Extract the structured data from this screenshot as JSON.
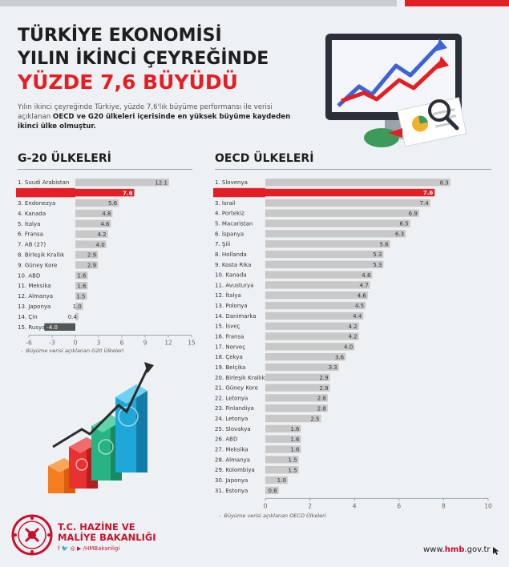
{
  "title": {
    "line1": "TÜRKİYE EKONOMİSİ",
    "line2": "YILIN İKİNCİ ÇEYREĞİNDE",
    "line3": "YÜZDE 7,6 BÜYÜDÜ"
  },
  "description": {
    "part1": "Yılın ikinci çeyreğinde Türkiye, yüzde 7,6'lık büyüme performansı ile verisi açıklanan ",
    "part2_bold": "OECD ve G20 ülkeleri içerisinde en yüksek büyüme kaydeden ikinci ülke olmuştur."
  },
  "colors": {
    "highlight": "#e31e24",
    "bar": "#c8c8c8",
    "accent": "#c8102e"
  },
  "chart_data": [
    {
      "type": "bar",
      "orientation": "horizontal",
      "title": "G-20 ÜLKELERİ",
      "categories": [
        "1. Suudi Arabistan",
        "2. TÜRKİYE",
        "3. Endonezya",
        "4. Kanada",
        "5. İtalya",
        "6. Fransa",
        "7. AB (27)",
        "8. Birleşik Krallık",
        "9. Güney Kore",
        "10. ABD",
        "11. Meksika",
        "12. Almanya",
        "13. Japonya",
        "14. Çin",
        "15. Rusya"
      ],
      "values": [
        12.1,
        7.6,
        5.6,
        4.8,
        4.6,
        4.2,
        4.0,
        2.9,
        2.9,
        1.6,
        1.6,
        1.5,
        1.0,
        0.4,
        -4.0
      ],
      "value_labels": [
        "12.1",
        "7.6",
        "5.6",
        "4.8",
        "4.6",
        "4.2",
        "4.0",
        "2.9",
        "2.9",
        "1.6",
        "1.6",
        "1.5",
        "1.0",
        "0.4",
        "-4.0"
      ],
      "highlight_index": 1,
      "xlim": [
        -6,
        15
      ],
      "xticks": [
        "-6",
        "-3",
        "0",
        "3",
        "6",
        "9",
        "12",
        "15"
      ],
      "grid": false,
      "footnote": "Büyüme verisi açıklanan G20 Ülkeleri"
    },
    {
      "type": "bar",
      "orientation": "horizontal",
      "title": "OECD ÜLKELERİ",
      "categories": [
        "1. Slovenya",
        "2. TÜRKİYE",
        "3. İsrail",
        "4. Portekiz",
        "5. Macaristan",
        "6. İspanya",
        "7. Şili",
        "8. Hollanda",
        "9. Kosta Rika",
        "10. Kanada",
        "11. Avusturya",
        "12. İtalya",
        "13. Polonya",
        "14. Danimarka",
        "15. İsveç",
        "16. Fransa",
        "17. Norveç",
        "18. Çekya",
        "19. Belçika",
        "20. Birleşik Krallık",
        "21. Güney Kore",
        "22. Letonya",
        "23. Finlandiya",
        "24. Letonya",
        "25. Slovakya",
        "26. ABD",
        "27. Meksika",
        "28. Almanya",
        "29. Kolombiya",
        "30. Japonya",
        "31. Estonya"
      ],
      "values": [
        8.3,
        7.6,
        7.4,
        6.9,
        6.5,
        6.3,
        5.6,
        5.3,
        5.3,
        4.8,
        4.7,
        4.6,
        4.5,
        4.4,
        4.2,
        4.2,
        4.0,
        3.6,
        3.3,
        2.9,
        2.9,
        2.8,
        2.8,
        2.5,
        1.6,
        1.6,
        1.6,
        1.5,
        1.5,
        1.0,
        0.6
      ],
      "value_labels": [
        "8.3",
        "7.6",
        "7.4",
        "6.9",
        "6.5",
        "6.3",
        "5.6",
        "5.3",
        "5.3",
        "4.8",
        "4.7",
        "4.6",
        "4.5",
        "4.4",
        "4.2",
        "4.2",
        "4.0",
        "3.6",
        "3.3",
        "2.9",
        "2.9",
        "2.8",
        "2.8",
        "2.5",
        "1.6",
        "1.6",
        "1.6",
        "1.5",
        "1.5",
        "1.0",
        "0.6"
      ],
      "highlight_index": 1,
      "xlim": [
        0,
        10
      ],
      "xticks": [
        "0",
        "2",
        "4",
        "6",
        "8",
        "10"
      ],
      "grid": false,
      "footnote": "Büyüme verisi açıklanan OECD Ülkeleri"
    }
  ],
  "footer": {
    "org_line1": "T.C. HAZİNE VE",
    "org_line2": "MALİYE BAKANLIĞI",
    "social_handle": "/HMBakanligi",
    "social_icons": [
      "facebook-icon",
      "twitter-icon",
      "instagram-icon",
      "youtube-icon"
    ],
    "website_prefix": "www.",
    "website_bold": "hmb",
    "website_suffix": ".gov.tr"
  }
}
